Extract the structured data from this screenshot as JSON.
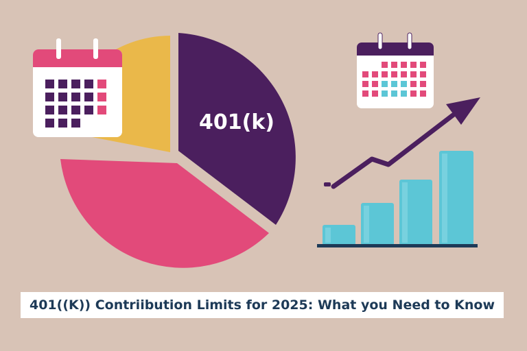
{
  "pie": {
    "label": "401(k)",
    "colors": {
      "purple": "#4b1f5e",
      "pink": "#e24a7a",
      "yellow": "#eab84a"
    }
  },
  "icons": {
    "calendar_left": "calendar-icon",
    "calendar_right": "calendar-icon",
    "arrow": "trend-arrow-icon",
    "bars": "bar-chart-icon"
  },
  "bars": {
    "color": "#5cc6d6"
  },
  "title": "401((K)) Contriibution Limits for 2025: What you Need to Know"
}
